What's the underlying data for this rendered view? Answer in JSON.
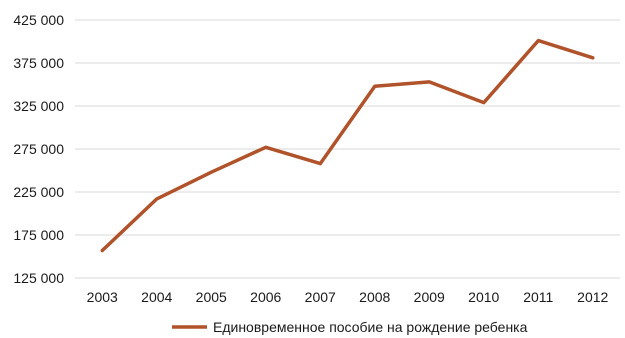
{
  "chart_data": {
    "type": "line",
    "title": "",
    "xlabel": "",
    "ylabel": "",
    "categories": [
      "2003",
      "2004",
      "2005",
      "2006",
      "2007",
      "2008",
      "2009",
      "2010",
      "2011",
      "2012"
    ],
    "series": [
      {
        "name": "Единовременное пособие на рождение ребенка",
        "values": [
          157000,
          217000,
          248000,
          277000,
          258000,
          348000,
          353000,
          329000,
          401000,
          381000
        ],
        "color": "#B0532A"
      }
    ],
    "ylim": [
      125000,
      425000
    ],
    "yticks": [
      125000,
      175000,
      225000,
      275000,
      325000,
      375000,
      425000
    ],
    "ytick_labels": [
      "125 000",
      "175 000",
      "225 000",
      "275 000",
      "325 000",
      "375 000",
      "425 000"
    ],
    "grid": true,
    "gridline_color": "#d9d9d9",
    "legend_position": "bottom"
  }
}
